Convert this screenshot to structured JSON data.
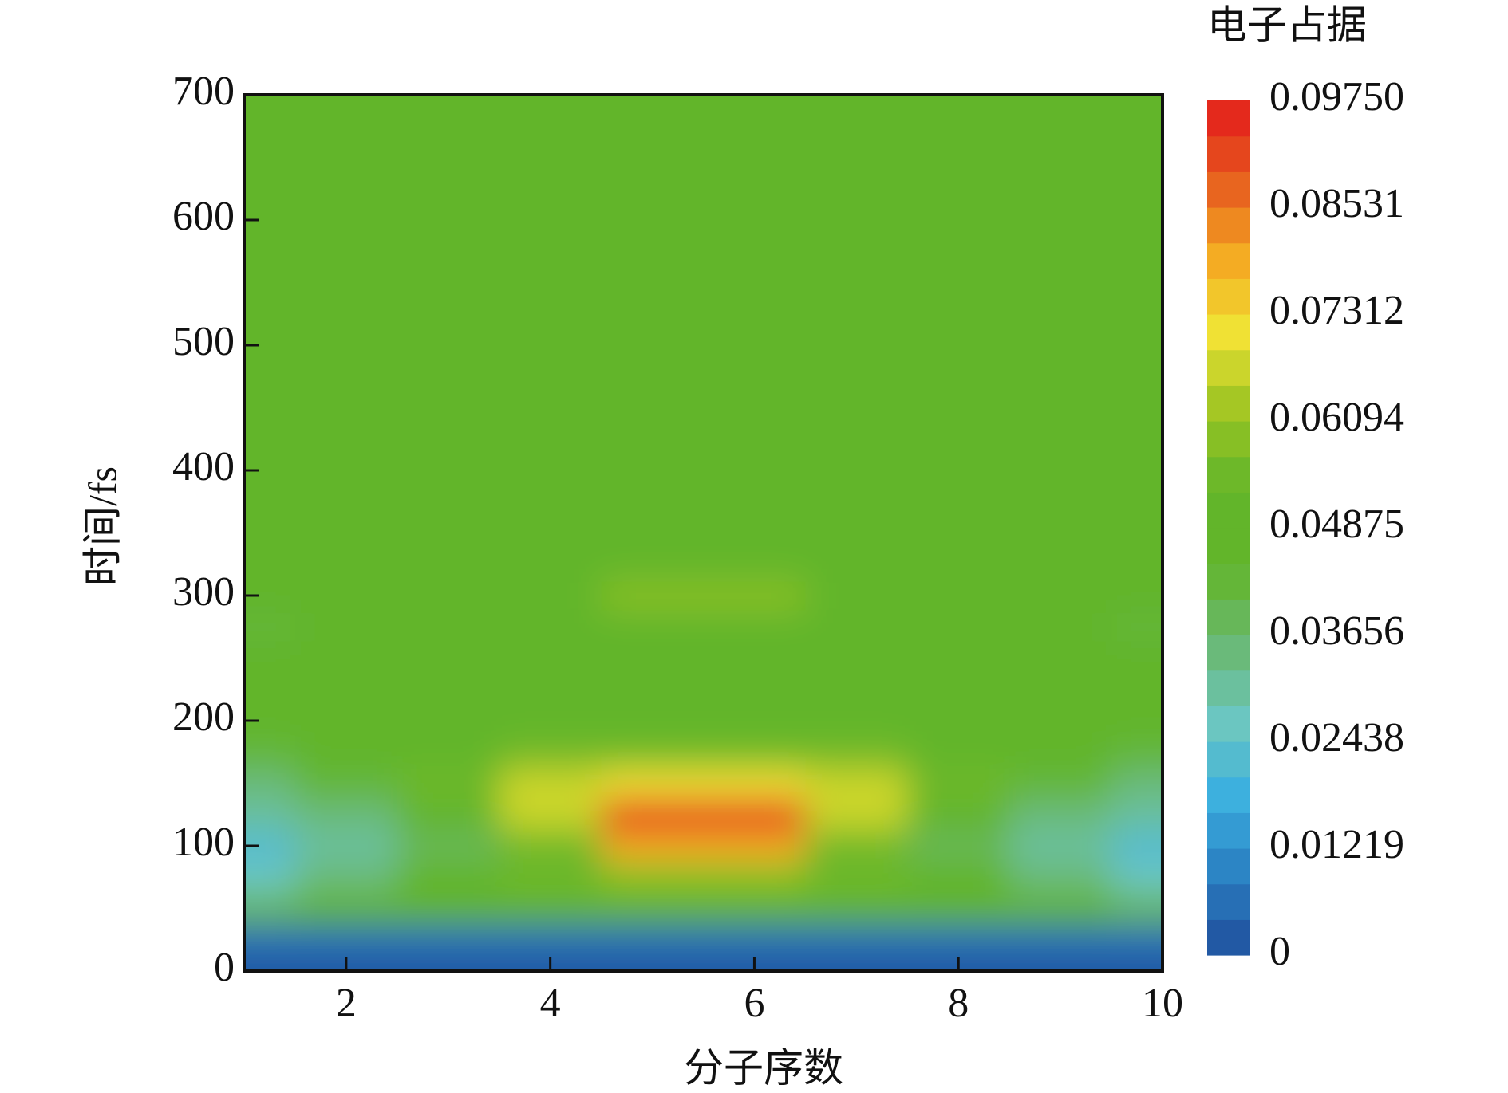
{
  "chart_data": {
    "type": "heatmap",
    "title": "电子占据",
    "xlabel": "分子序数",
    "ylabel": "时间/fs",
    "x": [
      1,
      2,
      3,
      4,
      5,
      6,
      7,
      8,
      9,
      10
    ],
    "y": [
      0,
      25,
      50,
      75,
      100,
      125,
      150,
      175,
      200,
      225,
      250,
      275,
      300,
      325,
      350,
      375,
      400,
      425,
      450,
      475,
      500,
      525,
      550,
      575,
      600,
      625,
      650,
      675,
      700
    ],
    "z": [
      [
        0.002,
        0.002,
        0.002,
        0.002,
        0.002,
        0.002,
        0.002,
        0.002,
        0.002,
        0.002
      ],
      [
        0.008,
        0.008,
        0.008,
        0.008,
        0.008,
        0.008,
        0.008,
        0.008,
        0.008,
        0.008
      ],
      [
        0.04,
        0.045,
        0.05,
        0.052,
        0.052,
        0.052,
        0.052,
        0.05,
        0.045,
        0.04
      ],
      [
        0.025,
        0.035,
        0.045,
        0.055,
        0.06,
        0.06,
        0.055,
        0.045,
        0.035,
        0.025
      ],
      [
        0.022,
        0.03,
        0.04,
        0.055,
        0.08,
        0.08,
        0.055,
        0.04,
        0.03,
        0.022
      ],
      [
        0.03,
        0.034,
        0.045,
        0.065,
        0.095,
        0.095,
        0.065,
        0.045,
        0.034,
        0.03
      ],
      [
        0.035,
        0.042,
        0.055,
        0.065,
        0.07,
        0.07,
        0.065,
        0.055,
        0.042,
        0.035
      ],
      [
        0.042,
        0.047,
        0.05,
        0.056,
        0.055,
        0.055,
        0.056,
        0.05,
        0.047,
        0.042
      ],
      [
        0.049,
        0.049,
        0.046,
        0.047,
        0.05,
        0.05,
        0.047,
        0.046,
        0.049,
        0.049
      ],
      [
        0.05,
        0.05,
        0.05,
        0.048,
        0.045,
        0.045,
        0.048,
        0.05,
        0.05,
        0.05
      ],
      [
        0.046,
        0.048,
        0.05,
        0.05,
        0.049,
        0.049,
        0.05,
        0.05,
        0.048,
        0.046
      ],
      [
        0.044,
        0.045,
        0.048,
        0.05,
        0.052,
        0.052,
        0.05,
        0.048,
        0.045,
        0.044
      ],
      [
        0.045,
        0.046,
        0.048,
        0.05,
        0.057,
        0.057,
        0.05,
        0.048,
        0.046,
        0.045
      ],
      [
        0.047,
        0.047,
        0.049,
        0.05,
        0.052,
        0.052,
        0.05,
        0.049,
        0.047,
        0.047
      ],
      [
        0.05,
        0.05,
        0.05,
        0.05,
        0.05,
        0.05,
        0.05,
        0.05,
        0.05,
        0.05
      ],
      [
        0.05,
        0.05,
        0.05,
        0.05,
        0.05,
        0.05,
        0.05,
        0.05,
        0.05,
        0.05
      ],
      [
        0.05,
        0.05,
        0.05,
        0.05,
        0.05,
        0.05,
        0.05,
        0.05,
        0.05,
        0.05
      ],
      [
        0.05,
        0.05,
        0.05,
        0.05,
        0.05,
        0.05,
        0.05,
        0.05,
        0.05,
        0.05
      ],
      [
        0.05,
        0.05,
        0.05,
        0.05,
        0.05,
        0.05,
        0.05,
        0.05,
        0.05,
        0.05
      ],
      [
        0.05,
        0.05,
        0.05,
        0.05,
        0.05,
        0.05,
        0.05,
        0.05,
        0.05,
        0.05
      ],
      [
        0.05,
        0.05,
        0.05,
        0.05,
        0.05,
        0.05,
        0.05,
        0.05,
        0.05,
        0.05
      ],
      [
        0.05,
        0.05,
        0.05,
        0.05,
        0.05,
        0.05,
        0.05,
        0.05,
        0.05,
        0.05
      ],
      [
        0.05,
        0.05,
        0.05,
        0.05,
        0.05,
        0.05,
        0.05,
        0.05,
        0.05,
        0.05
      ],
      [
        0.05,
        0.05,
        0.05,
        0.05,
        0.05,
        0.05,
        0.05,
        0.05,
        0.05,
        0.05
      ],
      [
        0.05,
        0.05,
        0.05,
        0.05,
        0.05,
        0.05,
        0.05,
        0.05,
        0.05,
        0.05
      ],
      [
        0.05,
        0.05,
        0.05,
        0.05,
        0.05,
        0.05,
        0.05,
        0.05,
        0.05,
        0.05
      ],
      [
        0.05,
        0.05,
        0.05,
        0.05,
        0.05,
        0.05,
        0.05,
        0.05,
        0.05,
        0.05
      ],
      [
        0.05,
        0.05,
        0.05,
        0.05,
        0.05,
        0.05,
        0.05,
        0.05,
        0.05,
        0.05
      ],
      [
        0.05,
        0.05,
        0.05,
        0.05,
        0.05,
        0.05,
        0.05,
        0.05,
        0.05,
        0.05
      ]
    ],
    "xlim": [
      1,
      10
    ],
    "xticks": [
      2,
      4,
      6,
      8,
      10
    ],
    "ylim": [
      0,
      700
    ],
    "yticks": [
      0,
      100,
      200,
      300,
      400,
      500,
      600,
      700
    ],
    "zlim": [
      0,
      0.0975
    ],
    "zticks": [
      0,
      0.01219,
      0.02438,
      0.03656,
      0.04875,
      0.06094,
      0.07312,
      0.08531,
      {
        "value": 0.0975,
        "label": "0.09750"
      }
    ],
    "levels": 24,
    "colorscale": [
      "#1f4e9c",
      "#2a7ec0",
      "#3aaee0",
      "#6cc7c0",
      "#6ab872",
      "#62b52a",
      "#62b52a",
      "#9cc422",
      "#f0e234",
      "#f4a822",
      "#e65a1e",
      "#e41a1c"
    ]
  }
}
